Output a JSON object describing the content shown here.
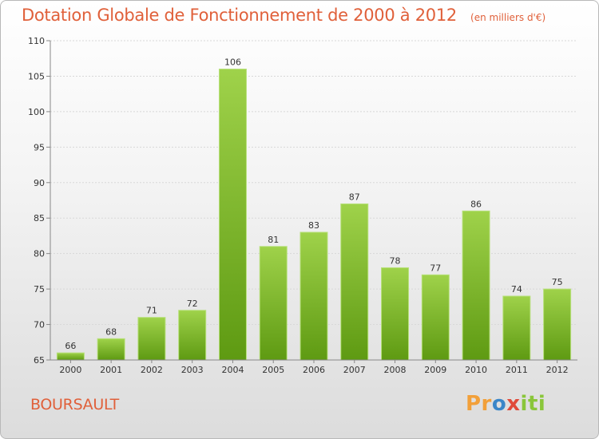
{
  "header": {
    "title": "Dotation Globale de Fonctionnement de 2000 à 2012",
    "unit": "(en milliers d'€)"
  },
  "commune": "BOURSAULT",
  "logo": {
    "p": "Pr",
    "o": "o",
    "x": "x",
    "iti": "iti"
  },
  "colors": {
    "bar_top": "#9fd24a",
    "bar_bottom": "#5e9a12",
    "accent": "#e0603a"
  },
  "chart_data": {
    "type": "bar",
    "title": "Dotation Globale de Fonctionnement de 2000 à 2012",
    "subtitle": "(en milliers d'€)",
    "xlabel": "",
    "ylabel": "",
    "categories": [
      "2000",
      "2001",
      "2002",
      "2003",
      "2004",
      "2005",
      "2006",
      "2007",
      "2008",
      "2009",
      "2010",
      "2011",
      "2012"
    ],
    "values": [
      66,
      68,
      71,
      72,
      106,
      81,
      83,
      87,
      78,
      77,
      86,
      74,
      75
    ],
    "value_labels": [
      "66",
      "68",
      "71",
      "72",
      "106",
      "81",
      "83",
      "87",
      "78",
      "77",
      "86",
      "74",
      "75"
    ],
    "ylim": [
      65,
      110
    ],
    "yticks": [
      "65",
      "70",
      "75",
      "80",
      "85",
      "90",
      "95",
      "100",
      "105",
      "110"
    ],
    "grid": true,
    "legend": "none"
  }
}
